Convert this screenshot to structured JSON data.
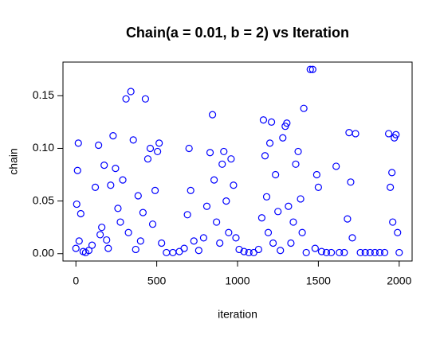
{
  "chart_data": {
    "type": "scatter",
    "title": "Chain(a = 0.01, b = 2) vs Iteration",
    "x_label": "iteration",
    "y_label": "chain",
    "color": "#0000ff",
    "xlim": [
      -80,
      2080
    ],
    "ylim": [
      -0.007,
      0.182
    ],
    "xticks": [
      0,
      500,
      1000,
      1500,
      2000
    ],
    "yticks": [
      {
        "value": 0,
        "label": "0.00"
      },
      0.05,
      {
        "value": 0.1,
        "label": "0.10"
      },
      0.15
    ],
    "x": [
      0,
      5,
      10,
      15,
      20,
      30,
      45,
      60,
      80,
      100,
      120,
      140,
      150,
      160,
      175,
      190,
      200,
      215,
      230,
      245,
      260,
      275,
      290,
      310,
      325,
      340,
      355,
      370,
      385,
      400,
      415,
      430,
      445,
      460,
      475,
      490,
      505,
      515,
      530,
      560,
      600,
      640,
      670,
      690,
      700,
      710,
      730,
      760,
      790,
      810,
      830,
      845,
      855,
      870,
      890,
      905,
      915,
      930,
      945,
      960,
      975,
      990,
      1010,
      1040,
      1070,
      1100,
      1130,
      1150,
      1160,
      1170,
      1180,
      1190,
      1200,
      1210,
      1220,
      1235,
      1250,
      1265,
      1280,
      1295,
      1305,
      1315,
      1330,
      1345,
      1360,
      1375,
      1390,
      1400,
      1410,
      1425,
      1450,
      1465,
      1480,
      1490,
      1500,
      1520,
      1550,
      1580,
      1610,
      1630,
      1660,
      1680,
      1690,
      1700,
      1710,
      1730,
      1760,
      1790,
      1820,
      1850,
      1880,
      1910,
      1935,
      1945,
      1955,
      1960,
      1970,
      1980,
      1990,
      2000
    ],
    "values": [
      0.005,
      0.047,
      0.079,
      0.105,
      0.012,
      0.038,
      0.002,
      0.001,
      0.003,
      0.008,
      0.063,
      0.103,
      0.018,
      0.025,
      0.084,
      0.013,
      0.005,
      0.065,
      0.112,
      0.081,
      0.043,
      0.03,
      0.07,
      0.147,
      0.02,
      0.154,
      0.108,
      0.004,
      0.055,
      0.012,
      0.039,
      0.147,
      0.09,
      0.1,
      0.028,
      0.06,
      0.097,
      0.105,
      0.01,
      0.001,
      0.001,
      0.002,
      0.005,
      0.037,
      0.1,
      0.06,
      0.012,
      0.003,
      0.015,
      0.045,
      0.096,
      0.132,
      0.07,
      0.03,
      0.01,
      0.085,
      0.097,
      0.05,
      0.02,
      0.09,
      0.065,
      0.015,
      0.004,
      0.002,
      0.001,
      0.001,
      0.004,
      0.034,
      0.127,
      0.093,
      0.054,
      0.02,
      0.105,
      0.125,
      0.01,
      0.075,
      0.04,
      0.003,
      0.11,
      0.121,
      0.124,
      0.045,
      0.01,
      0.03,
      0.085,
      0.097,
      0.052,
      0.02,
      0.138,
      0.001,
      0.175,
      0.175,
      0.005,
      0.075,
      0.063,
      0.002,
      0.001,
      0.001,
      0.083,
      0.001,
      0.001,
      0.033,
      0.115,
      0.068,
      0.015,
      0.114,
      0.001,
      0.001,
      0.001,
      0.001,
      0.001,
      0.001,
      0.114,
      0.063,
      0.077,
      0.03,
      0.11,
      0.113,
      0.02,
      0.001
    ]
  }
}
